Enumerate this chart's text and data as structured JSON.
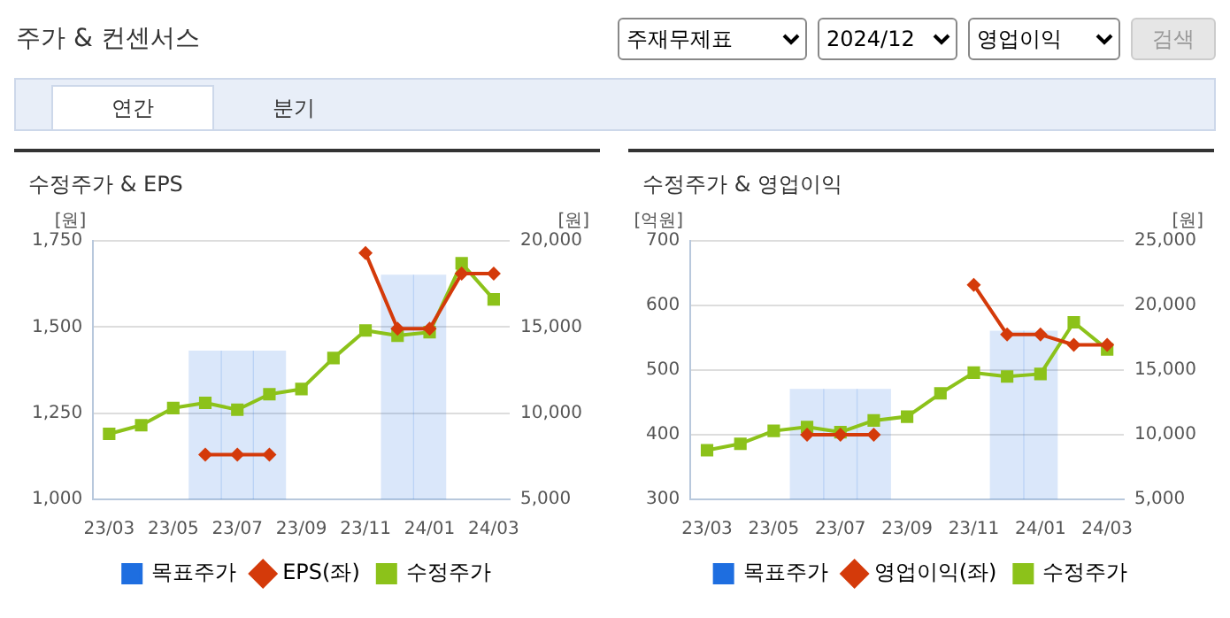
{
  "chart_data": [
    {
      "type": "other",
      "title": "주가 & 컨센서스",
      "annotations": [
        "주재무제표",
        "2024/12",
        "영업이익",
        "검색",
        "연간",
        "분기"
      ]
    },
    {
      "type": "line",
      "title": "수정주가 & EPS",
      "ylabel": "[원]",
      "y2label": "[원]",
      "categories": [
        "23/03",
        null,
        "23/05",
        null,
        "23/07",
        null,
        "23/09",
        null,
        "23/11",
        null,
        "24/01",
        null,
        "24/03"
      ],
      "series": [
        {
          "name": "목표주가",
          "type": "bar",
          "axis": "y2",
          "color": "#1e6ee0",
          "values": [
            null,
            null,
            null,
            13600,
            13600,
            13600,
            null,
            null,
            null,
            18000,
            18000,
            null,
            null
          ]
        },
        {
          "name": "EPS(좌)",
          "color": "#d43a0a",
          "marker": "diamond",
          "values": [
            null,
            null,
            null,
            1130,
            1130,
            1130,
            null,
            null,
            1715,
            1495,
            1495,
            1655,
            1655
          ]
        },
        {
          "name": "수정주가",
          "color": "#8cc21a",
          "marker": "square",
          "axis": "y2",
          "values": [
            8800,
            9300,
            10300,
            10600,
            10200,
            11100,
            11400,
            13200,
            14800,
            14500,
            14700,
            18700,
            16600
          ]
        }
      ],
      "ylim": [
        1000,
        1750
      ],
      "yticks": [
        {
          "value": 1000,
          "label": "1,000"
        },
        {
          "value": 1250,
          "label": "1,250"
        },
        {
          "value": 1500,
          "label": "1,500"
        },
        {
          "value": 1750,
          "label": "1,750"
        }
      ],
      "y2lim": [
        5000,
        20000
      ],
      "y2ticks": [
        {
          "value": 5000,
          "label": "5,000"
        },
        {
          "value": 10000,
          "label": "10,000"
        },
        {
          "value": 15000,
          "label": "15,000"
        },
        {
          "value": 20000,
          "label": "20,000"
        }
      ],
      "grid": "y",
      "legend": "bottom"
    },
    {
      "type": "line",
      "title": "수정주가 & 영업이익",
      "ylabel": "[억원]",
      "y2label": "[원]",
      "categories": [
        "23/03",
        null,
        "23/05",
        null,
        "23/07",
        null,
        "23/09",
        null,
        "23/11",
        null,
        "24/01",
        null,
        "24/03"
      ],
      "series": [
        {
          "name": "목표주가",
          "type": "bar",
          "axis": "y2",
          "color": "#1e6ee0",
          "values": [
            null,
            null,
            null,
            13500,
            13500,
            13500,
            null,
            null,
            null,
            18000,
            18000,
            null,
            null
          ]
        },
        {
          "name": "영업이익(좌)",
          "color": "#d43a0a",
          "marker": "diamond",
          "values": [
            null,
            null,
            null,
            400,
            400,
            400,
            null,
            null,
            632,
            555,
            555,
            539,
            539
          ]
        },
        {
          "name": "수정주가",
          "color": "#8cc21a",
          "marker": "square",
          "axis": "y2",
          "values": [
            8800,
            9300,
            10300,
            10600,
            10200,
            11100,
            11400,
            13200,
            14800,
            14500,
            14700,
            18700,
            16600
          ]
        }
      ],
      "ylim": [
        300,
        700
      ],
      "yticks": [
        300,
        400,
        500,
        600,
        700
      ],
      "y2lim": [
        5000,
        25000
      ],
      "y2ticks": [
        {
          "value": 5000,
          "label": "5,000"
        },
        {
          "value": 10000,
          "label": "10,000"
        },
        {
          "value": 15000,
          "label": "15,000"
        },
        {
          "value": 20000,
          "label": "20,000"
        },
        {
          "value": 25000,
          "label": "25,000"
        }
      ],
      "grid": "y",
      "legend": "bottom"
    }
  ]
}
